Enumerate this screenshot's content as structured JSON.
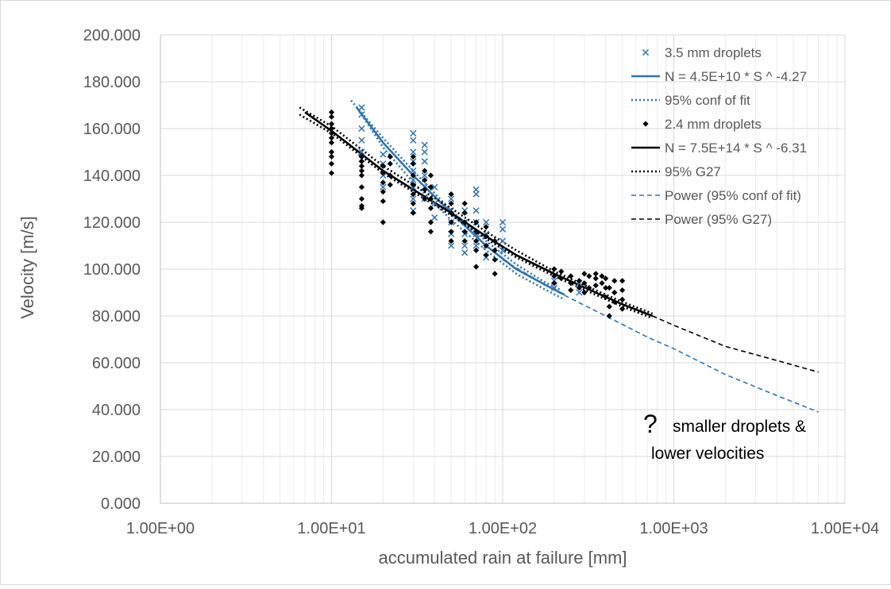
{
  "chart_data": {
    "type": "scatter",
    "title": "",
    "xlabel": "accumulated rain at failure [mm]",
    "ylabel": "Velocity [m/s]",
    "x_scale": "log",
    "xlim": [
      1,
      10000
    ],
    "ylim": [
      0,
      200
    ],
    "x_ticks": [
      1,
      10,
      100,
      1000,
      10000
    ],
    "x_tick_labels": [
      "1.00E+00",
      "1.00E+01",
      "1.00E+02",
      "1.00E+03",
      "1.00E+04"
    ],
    "y_ticks": [
      0,
      20,
      40,
      60,
      80,
      100,
      120,
      140,
      160,
      180,
      200
    ],
    "y_tick_labels": [
      "0.000",
      "20.000",
      "40.000",
      "60.000",
      "80.000",
      "100.000",
      "120.000",
      "140.000",
      "160.000",
      "180.000",
      "200.000"
    ],
    "grid": true,
    "legend_position": "top-right",
    "annotation": {
      "symbol": "?",
      "line1": "smaller droplets &",
      "line2": "lower velocities"
    },
    "series": [
      {
        "name": "3.5 mm droplets",
        "kind": "scatter",
        "marker": "x",
        "color": "#2e75b6",
        "points": [
          [
            15,
            169
          ],
          [
            15,
            166
          ],
          [
            15,
            160
          ],
          [
            15,
            155
          ],
          [
            15,
            150
          ],
          [
            15,
            147
          ],
          [
            20,
            149
          ],
          [
            20,
            145
          ],
          [
            20,
            140
          ],
          [
            20,
            135
          ],
          [
            30,
            158
          ],
          [
            30,
            155
          ],
          [
            30,
            150
          ],
          [
            30,
            146
          ],
          [
            30,
            142
          ],
          [
            30,
            138
          ],
          [
            30,
            135
          ],
          [
            30,
            130
          ],
          [
            30,
            125
          ],
          [
            35,
            153
          ],
          [
            35,
            150
          ],
          [
            35,
            146
          ],
          [
            35,
            140
          ],
          [
            35,
            135
          ],
          [
            35,
            130
          ],
          [
            40,
            135
          ],
          [
            40,
            128
          ],
          [
            40,
            122
          ],
          [
            50,
            130
          ],
          [
            50,
            125
          ],
          [
            50,
            120
          ],
          [
            50,
            115
          ],
          [
            50,
            110
          ],
          [
            60,
            125
          ],
          [
            60,
            120
          ],
          [
            60,
            115
          ],
          [
            60,
            110
          ],
          [
            60,
            107
          ],
          [
            70,
            134
          ],
          [
            70,
            132
          ],
          [
            70,
            125
          ],
          [
            70,
            120
          ],
          [
            70,
            115
          ],
          [
            70,
            110
          ],
          [
            80,
            120
          ],
          [
            80,
            115
          ],
          [
            80,
            110
          ],
          [
            80,
            105
          ],
          [
            100,
            120
          ],
          [
            100,
            117
          ],
          [
            100,
            112
          ],
          [
            100,
            108
          ],
          [
            200,
            95
          ],
          [
            200,
            92
          ],
          [
            280,
            94
          ],
          [
            280,
            90
          ]
        ]
      },
      {
        "name": "N = 4.5E+10 * S ^ -4.27",
        "kind": "fit",
        "line": "solid",
        "color": "#2e75b6",
        "x": [
          14,
          20,
          30,
          50,
          80,
          120,
          180,
          230
        ],
        "y": [
          169,
          154,
          140,
          124,
          110,
          100,
          93,
          89
        ]
      },
      {
        "name": "95% conf of fit",
        "kind": "fit",
        "line": "dotted",
        "color": "#2e75b6",
        "x": [
          13,
          20,
          30,
          50,
          80,
          120,
          180,
          220
        ],
        "y": [
          172,
          156,
          142,
          125,
          112,
          102,
          94,
          91
        ]
      },
      {
        "name": "95% conf of fit",
        "kind": "fit",
        "line": "dotted",
        "color": "#2e75b6",
        "x": [
          15,
          20,
          30,
          50,
          80,
          120,
          180,
          230
        ],
        "y": [
          166,
          152,
          137,
          121,
          108,
          98,
          91,
          87
        ]
      },
      {
        "name": "2.4 mm droplets",
        "kind": "scatter",
        "marker": "diamond",
        "color": "#000000",
        "points": [
          [
            10,
            167
          ],
          [
            10,
            165
          ],
          [
            10,
            162
          ],
          [
            10,
            160
          ],
          [
            10,
            158
          ],
          [
            10,
            156
          ],
          [
            10,
            154
          ],
          [
            10,
            150
          ],
          [
            10,
            148
          ],
          [
            10,
            145
          ],
          [
            10,
            141
          ],
          [
            15,
            148
          ],
          [
            15,
            146
          ],
          [
            15,
            144
          ],
          [
            15,
            142
          ],
          [
            15,
            140
          ],
          [
            15,
            135
          ],
          [
            15,
            130
          ],
          [
            15,
            127
          ],
          [
            15,
            126
          ],
          [
            20,
            144
          ],
          [
            20,
            141
          ],
          [
            20,
            137
          ],
          [
            20,
            133
          ],
          [
            20,
            129
          ],
          [
            20,
            120
          ],
          [
            22,
            148
          ],
          [
            22,
            145
          ],
          [
            22,
            140
          ],
          [
            22,
            136
          ],
          [
            30,
            148
          ],
          [
            30,
            145
          ],
          [
            30,
            140
          ],
          [
            30,
            136
          ],
          [
            30,
            132
          ],
          [
            30,
            128
          ],
          [
            30,
            124
          ],
          [
            35,
            142
          ],
          [
            35,
            138
          ],
          [
            35,
            134
          ],
          [
            35,
            130
          ],
          [
            38,
            140
          ],
          [
            38,
            135
          ],
          [
            38,
            130
          ],
          [
            38,
            126
          ],
          [
            38,
            120
          ],
          [
            38,
            116
          ],
          [
            50,
            132
          ],
          [
            50,
            128
          ],
          [
            50,
            124
          ],
          [
            50,
            120
          ],
          [
            50,
            116
          ],
          [
            50,
            112
          ],
          [
            60,
            128
          ],
          [
            60,
            124
          ],
          [
            60,
            120
          ],
          [
            60,
            116
          ],
          [
            60,
            112
          ],
          [
            70,
            120
          ],
          [
            70,
            116
          ],
          [
            70,
            112
          ],
          [
            70,
            108
          ],
          [
            70,
            101
          ],
          [
            80,
            118
          ],
          [
            80,
            114
          ],
          [
            80,
            110
          ],
          [
            80,
            106
          ],
          [
            90,
            112
          ],
          [
            90,
            108
          ],
          [
            90,
            104
          ],
          [
            90,
            98
          ],
          [
            200,
            100
          ],
          [
            200,
            97
          ],
          [
            200,
            94
          ],
          [
            220,
            99
          ],
          [
            220,
            96
          ],
          [
            250,
            97
          ],
          [
            250,
            94
          ],
          [
            250,
            91
          ],
          [
            280,
            95
          ],
          [
            280,
            92
          ],
          [
            300,
            98
          ],
          [
            300,
            94
          ],
          [
            300,
            90
          ],
          [
            320,
            97
          ],
          [
            320,
            92
          ],
          [
            350,
            98
          ],
          [
            350,
            96
          ],
          [
            350,
            93
          ],
          [
            380,
            97
          ],
          [
            380,
            94
          ],
          [
            400,
            96
          ],
          [
            400,
            92
          ],
          [
            400,
            88
          ],
          [
            420,
            92
          ],
          [
            420,
            84
          ],
          [
            420,
            80
          ],
          [
            450,
            95
          ],
          [
            450,
            90
          ],
          [
            450,
            86
          ],
          [
            500,
            95
          ],
          [
            500,
            91
          ],
          [
            500,
            87
          ],
          [
            500,
            83
          ]
        ]
      },
      {
        "name": "N = 7.5E+14 * S ^ -6.31",
        "kind": "fit",
        "line": "solid",
        "color": "#000000",
        "x": [
          7,
          10,
          20,
          30,
          50,
          80,
          120,
          200,
          350,
          500,
          750
        ],
        "y": [
          167,
          159,
          142,
          134,
          124,
          114,
          106,
          98,
          90,
          85,
          80
        ]
      },
      {
        "name": "95% G27",
        "kind": "fit",
        "line": "dotted",
        "color": "#000000",
        "x": [
          6.5,
          10,
          20,
          30,
          50,
          80,
          120,
          200,
          350,
          500,
          750
        ],
        "y": [
          169,
          161,
          144,
          136,
          126,
          116,
          108,
          99,
          91,
          86,
          81
        ]
      },
      {
        "name": "95% G27",
        "kind": "fit",
        "line": "dotted",
        "color": "#000000",
        "x": [
          6.5,
          10,
          20,
          30,
          50,
          80,
          120,
          200,
          350,
          500,
          750
        ],
        "y": [
          166,
          158,
          141,
          133,
          123,
          113,
          105,
          97,
          89,
          84,
          79
        ]
      },
      {
        "name": "Power (95% conf of fit)",
        "kind": "trend",
        "line": "dashed",
        "color": "#2e75b6",
        "x": [
          100,
          200,
          400,
          700,
          1000,
          2000,
          4000,
          7000
        ],
        "y": [
          104,
          91,
          80,
          71,
          66,
          55,
          46,
          39
        ]
      },
      {
        "name": "Power (95% G27)",
        "kind": "trend",
        "line": "dashed",
        "color": "#000000",
        "x": [
          750,
          1000,
          2000,
          4000,
          7000
        ],
        "y": [
          80,
          76,
          67,
          61,
          56
        ]
      }
    ]
  }
}
